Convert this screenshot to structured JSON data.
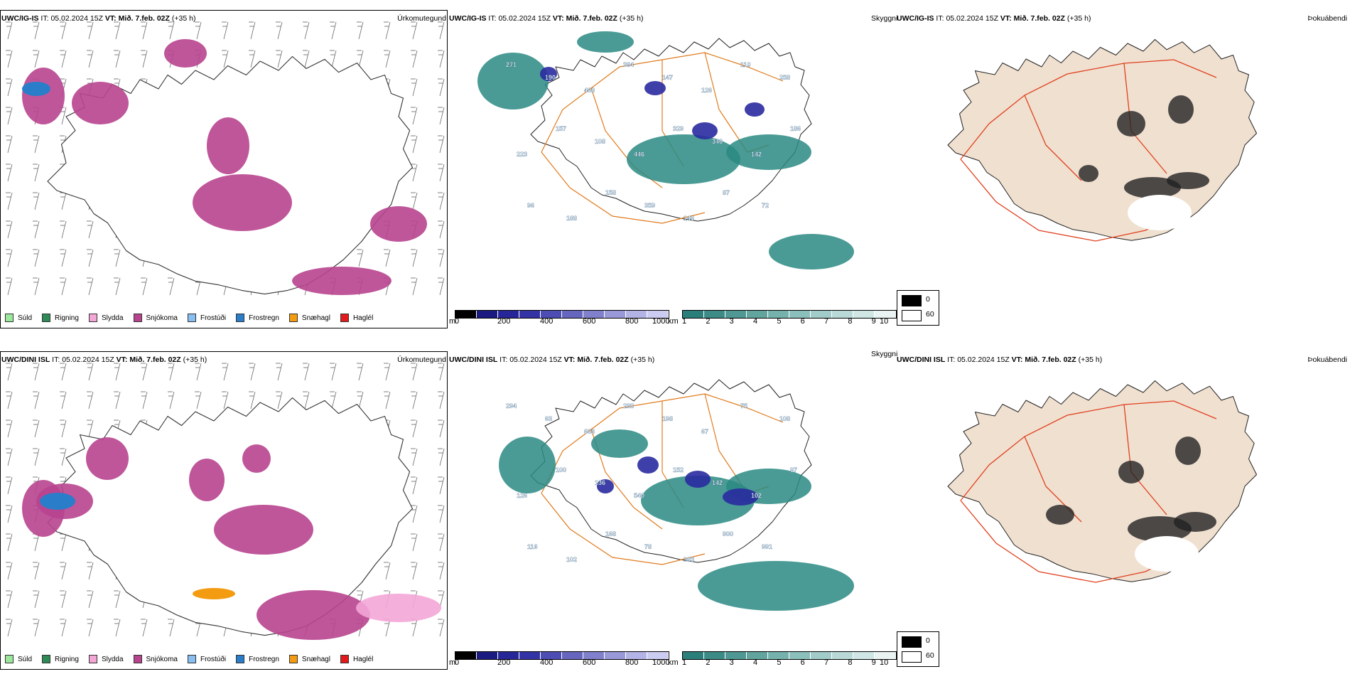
{
  "rows": [
    {
      "precip": {
        "model": "UWC/IG-IS",
        "it_label": "IT:",
        "it_value": "05.02.2024 15Z",
        "vt_label": "VT:",
        "vt_value": "Mið. 7.feb. 02Z",
        "lead": "(+35 h)",
        "title": "Úrkomutegund"
      },
      "vis": {
        "model": "UWC/IG-IS",
        "it_label": "IT:",
        "it_value": "05.02.2024 15Z",
        "vt_label": "VT:",
        "vt_value": "Mið. 7.feb. 02Z",
        "lead": "(+35 h)",
        "title": "Skyggni",
        "labels": [
          "271",
          "190",
          "468",
          "384",
          "147",
          "126",
          "110",
          "258",
          "223",
          "157",
          "108",
          "446",
          "329",
          "346",
          "142",
          "186",
          "96",
          "188",
          "158",
          "359",
          "146",
          "87",
          "72"
        ]
      },
      "fog": {
        "model": "UWC/IG-IS",
        "it_label": "IT:",
        "it_value": "05.02.2024 15Z",
        "vt_label": "VT:",
        "vt_value": "Mið. 7.feb. 02Z",
        "lead": "(+35 h)",
        "title": "Þokuábendi"
      }
    },
    {
      "precip": {
        "model": "UWC/DINI ISL",
        "it_label": "IT:",
        "it_value": "05.02.2024 15Z",
        "vt_label": "VT:",
        "vt_value": "Mið. 7.feb. 02Z",
        "lead": "(+35 h)",
        "title": "Úrkomutegund"
      },
      "vis": {
        "model": "UWC/DINI ISL",
        "it_label": "IT:",
        "it_value": "05.02.2024 15Z",
        "vt_label": "VT:",
        "vt_value": "Mið. 7.feb. 02Z",
        "lead": "(+35 h)",
        "title": "Skyggni",
        "labels": [
          "294",
          "63",
          "663",
          "238",
          "198",
          "67",
          "75",
          "108",
          "126",
          "100",
          "136",
          "540",
          "152",
          "142",
          "102",
          "97",
          "116",
          "102",
          "168",
          "78",
          "983",
          "900",
          "991"
        ]
      },
      "fog": {
        "model": "UWC/DINI ISL",
        "it_label": "IT:",
        "it_value": "05.02.2024 15Z",
        "vt_label": "VT:",
        "vt_value": "Mið. 7.feb. 02Z",
        "lead": "(+35 h)",
        "title": "Þokuábendi"
      }
    }
  ],
  "precip_legend": [
    {
      "label": "Súld",
      "color": "#9be89b"
    },
    {
      "label": "Rigning",
      "color": "#2e8b57"
    },
    {
      "label": "Slydda",
      "color": "#f4a6d7"
    },
    {
      "label": "Snjókoma",
      "color": "#b8448f"
    },
    {
      "label": "Frostúði",
      "color": "#88bff0"
    },
    {
      "label": "Frostregn",
      "color": "#2a7dc9"
    },
    {
      "label": "Snæhagl",
      "color": "#f39c12"
    },
    {
      "label": "Haglél",
      "color": "#e31a1c"
    }
  ],
  "vis_bars": {
    "m_unit": "m",
    "m_ticks": [
      "0",
      "200",
      "400",
      "600",
      "800",
      "1000"
    ],
    "m_colors": [
      "#000000",
      "#1a1a80",
      "#262699",
      "#3333a6",
      "#4d4db3",
      "#6666bf",
      "#8080cc",
      "#9999d9",
      "#b3b3e6",
      "#ccccf2"
    ],
    "km_unit": "km",
    "km_ticks": [
      "1",
      "2",
      "3",
      "4",
      "5",
      "6",
      "7",
      "8",
      "9",
      "10"
    ],
    "km_colors": [
      "#2a7f7b",
      "#3c8b87",
      "#4f9893",
      "#62a59f",
      "#76b2ad",
      "#8bbfbb",
      "#a1ccc9",
      "#b8d9d7",
      "#cfe6e5",
      "#e8f3f2"
    ]
  },
  "fog_legend": {
    "black": "0",
    "white": "60"
  },
  "colors": {
    "snow": "#b8448f",
    "roads": "#e07b1e",
    "fog_land": "#f0e0d0",
    "fog_roads": "#e0401e",
    "vis_teal": "#2a8a82",
    "vis_blue": "#2a2aa0"
  }
}
